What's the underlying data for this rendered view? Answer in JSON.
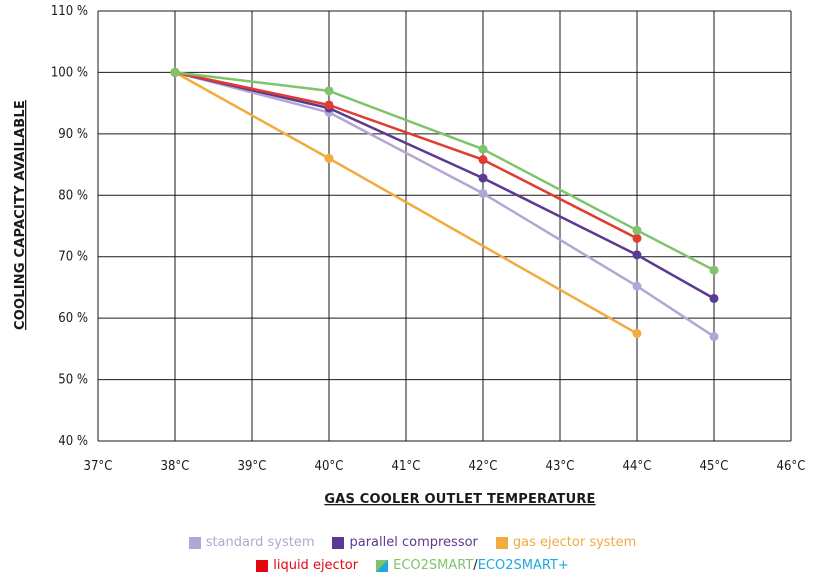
{
  "chart_data": {
    "type": "line",
    "xlabel": "GAS COOLER OUTLET TEMPERATURE",
    "ylabel": "COOLING CAPACITY AVAILABLE",
    "x_ticks": [
      "37°C",
      "38°C",
      "39°C",
      "40°C",
      "41°C",
      "42°C",
      "43°C",
      "44°C",
      "45°C",
      "46°C"
    ],
    "x_tick_values": [
      37,
      38,
      39,
      40,
      41,
      42,
      43,
      44,
      45,
      46
    ],
    "y_ticks": [
      "40 %",
      "50 %",
      "60 %",
      "70 %",
      "80 %",
      "90 %",
      "100 %",
      "110 %"
    ],
    "y_tick_values": [
      40,
      50,
      60,
      70,
      80,
      90,
      100,
      110
    ],
    "xlim": [
      37,
      46
    ],
    "ylim": [
      40,
      110
    ],
    "grid": true,
    "legend_position": "bottom",
    "series": [
      {
        "name": "standard system",
        "color": "#b3a6d4",
        "x": [
          38,
          40,
          42,
          44,
          45
        ],
        "y": [
          100,
          93.5,
          80.3,
          65.2,
          57
        ]
      },
      {
        "name": "parallel compressor",
        "color": "#5a3a92",
        "x": [
          38,
          40,
          42,
          44,
          45
        ],
        "y": [
          100,
          94.2,
          82.8,
          70.3,
          63.2
        ]
      },
      {
        "name": "gas ejector system",
        "color": "#f0ac3c",
        "x": [
          38,
          40,
          44
        ],
        "y": [
          100,
          86,
          57.5
        ]
      },
      {
        "name": "liquid ejector",
        "color": "#e23b2f",
        "x": [
          38,
          40,
          42,
          44
        ],
        "y": [
          100,
          94.7,
          85.8,
          73
        ]
      },
      {
        "name": "ECO2SMART/ECO2SMART+",
        "color": "#7dc46a",
        "x": [
          38,
          40,
          42,
          44,
          45
        ],
        "y": [
          100,
          97,
          87.5,
          74.3,
          67.8
        ]
      }
    ],
    "legend": {
      "row1": [
        {
          "label": "standard system",
          "color": "#b3a6d4",
          "text_color": "#b3a6d4"
        },
        {
          "label": "parallel compressor",
          "color": "#5a3a92",
          "text_color": "#5a3a92"
        },
        {
          "label": "gas ejector system",
          "color": "#f0ac3c",
          "text_color": "#f0ac3c"
        }
      ],
      "row2": [
        {
          "label": "liquid ejector",
          "color": "#e30613",
          "text_color": "#e30613"
        },
        {
          "label_a": "ECO2SMART",
          "label_sep": "/",
          "label_b": "ECO2SMART+",
          "color_a": "#7dc46a",
          "color_b": "#1fa8dd"
        }
      ]
    }
  }
}
